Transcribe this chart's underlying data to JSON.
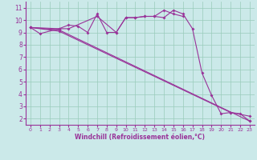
{
  "xlabel": "Windchill (Refroidissement éolien,°C)",
  "background_color": "#cbe9e9",
  "grid_color": "#99ccbb",
  "line_color": "#993399",
  "xlim": [
    -0.5,
    23.5
  ],
  "ylim": [
    1.5,
    11.5
  ],
  "yticks": [
    2,
    3,
    4,
    5,
    6,
    7,
    8,
    9,
    10,
    11
  ],
  "xticks": [
    0,
    1,
    2,
    3,
    4,
    5,
    6,
    7,
    8,
    9,
    10,
    11,
    12,
    13,
    14,
    15,
    16,
    17,
    18,
    19,
    20,
    21,
    22,
    23
  ],
  "series1_x": [
    0,
    1,
    3,
    4,
    7,
    9,
    10,
    11,
    12,
    13,
    14,
    15,
    16,
    17,
    18,
    19,
    20,
    21,
    22,
    23
  ],
  "series1_y": [
    9.4,
    8.9,
    9.3,
    9.3,
    10.3,
    9.0,
    10.2,
    10.2,
    10.3,
    10.3,
    10.2,
    10.8,
    10.5,
    9.3,
    5.7,
    3.9,
    2.4,
    2.5,
    2.4,
    1.8
  ],
  "series2_x": [
    0,
    3,
    4,
    5,
    6,
    7,
    8,
    9,
    10,
    11,
    12,
    13,
    14,
    15,
    16
  ],
  "series2_y": [
    9.4,
    9.3,
    9.6,
    9.5,
    9.0,
    10.5,
    9.0,
    9.0,
    10.2,
    10.2,
    10.3,
    10.3,
    10.8,
    10.5,
    10.3
  ],
  "series3_x": [
    0,
    3,
    23
  ],
  "series3_y": [
    9.4,
    9.2,
    1.8
  ],
  "series4_x": [
    0,
    3,
    21,
    23
  ],
  "series4_y": [
    9.4,
    9.1,
    2.5,
    2.2
  ]
}
